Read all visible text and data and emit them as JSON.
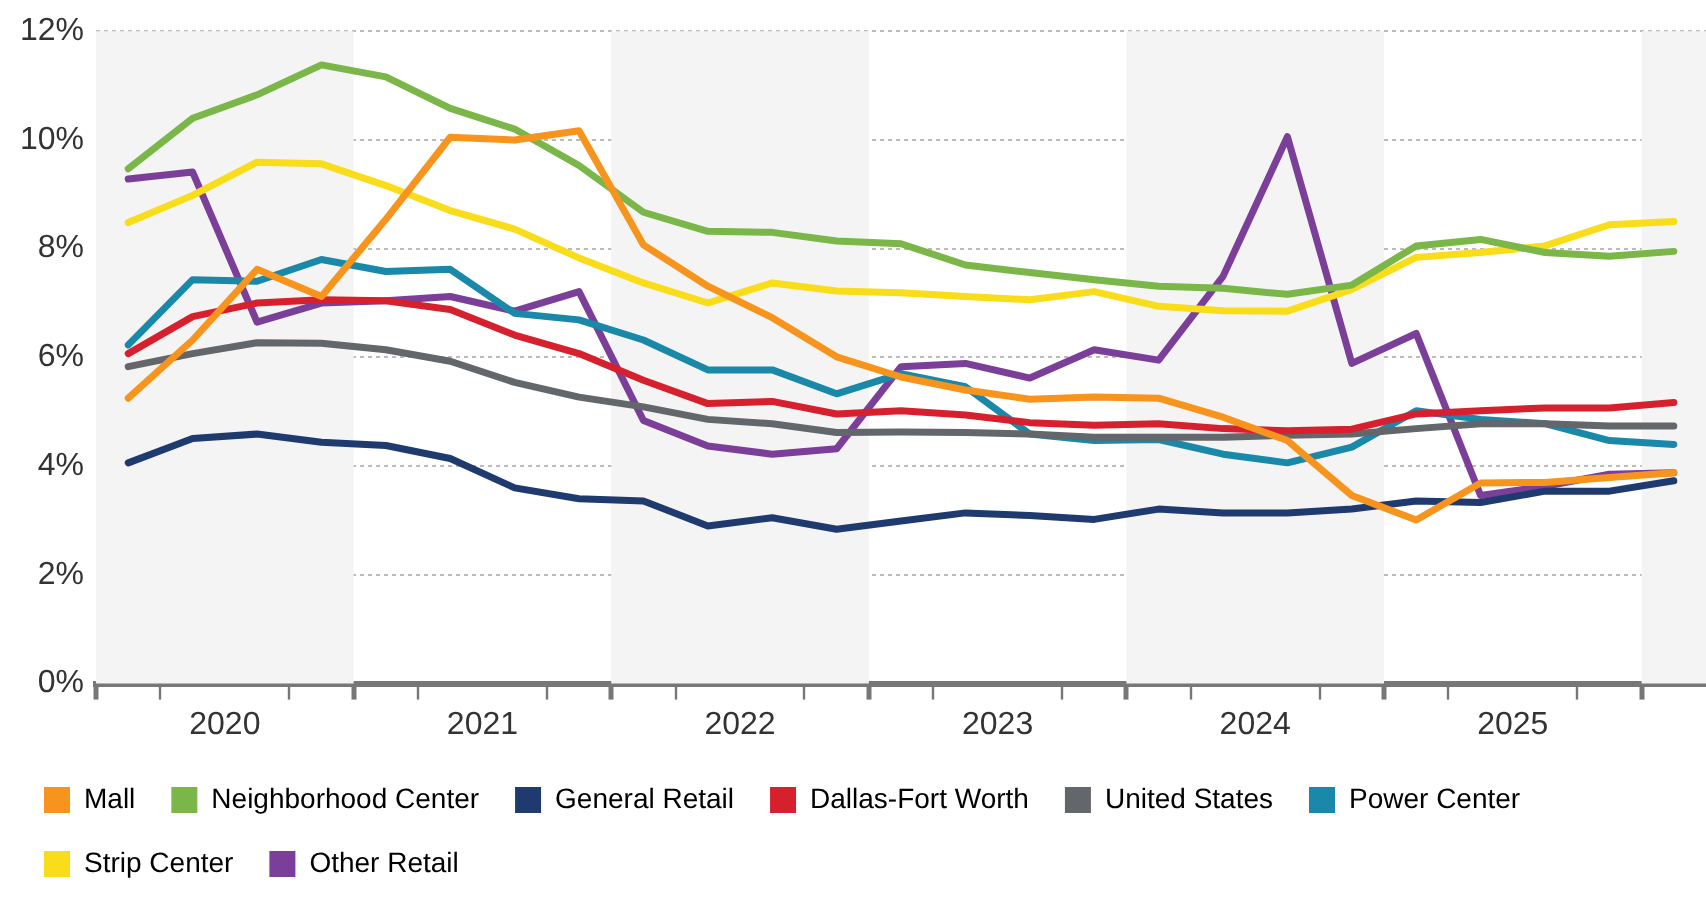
{
  "chart_data": {
    "type": "line",
    "x": [
      2020.125,
      2020.375,
      2020.625,
      2020.875,
      2021.125,
      2021.375,
      2021.625,
      2021.875,
      2022.125,
      2022.375,
      2022.625,
      2022.875,
      2023.125,
      2023.375,
      2023.625,
      2023.875,
      2024.125,
      2024.375,
      2024.625,
      2024.875,
      2025.125,
      2025.375,
      2025.625,
      2025.875,
      2026.125
    ],
    "series": [
      {
        "name": "Mall",
        "color": "#f7941d",
        "values": [
          5.25,
          6.32,
          7.62,
          7.12,
          8.54,
          10.05,
          10.0,
          10.17,
          8.07,
          7.31,
          6.73,
          6.01,
          5.64,
          5.4,
          5.23,
          5.27,
          5.25,
          4.9,
          4.47,
          3.46,
          3.01,
          3.69,
          3.7,
          3.79,
          3.88
        ]
      },
      {
        "name": "Neighborhood Center",
        "color": "#7ab648",
        "values": [
          9.47,
          10.4,
          10.83,
          11.38,
          11.16,
          10.58,
          10.2,
          9.53,
          8.67,
          8.32,
          8.3,
          8.14,
          8.09,
          7.7,
          7.56,
          7.43,
          7.31,
          7.27,
          7.16,
          7.33,
          8.05,
          8.17,
          7.93,
          7.86,
          7.95
        ]
      },
      {
        "name": "General Retail",
        "color": "#1f3a6e",
        "values": [
          4.06,
          4.51,
          4.59,
          4.44,
          4.38,
          4.14,
          3.6,
          3.4,
          3.36,
          2.9,
          3.05,
          2.84,
          2.99,
          3.14,
          3.09,
          3.02,
          3.21,
          3.14,
          3.14,
          3.21,
          3.36,
          3.33,
          3.54,
          3.54,
          3.73
        ]
      },
      {
        "name": "Dallas-Fort Worth",
        "color": "#d7202e",
        "values": [
          6.07,
          6.75,
          7.0,
          7.06,
          7.04,
          6.88,
          6.41,
          6.07,
          5.58,
          5.15,
          5.19,
          4.96,
          5.02,
          4.94,
          4.8,
          4.75,
          4.78,
          4.69,
          4.65,
          4.68,
          4.96,
          5.02,
          5.07,
          5.07,
          5.17
        ]
      },
      {
        "name": "United States",
        "color": "#63666a",
        "values": [
          5.83,
          6.07,
          6.27,
          6.26,
          6.14,
          5.93,
          5.54,
          5.27,
          5.09,
          4.86,
          4.78,
          4.62,
          4.63,
          4.62,
          4.59,
          4.53,
          4.53,
          4.53,
          4.57,
          4.59,
          4.69,
          4.78,
          4.78,
          4.74,
          4.74
        ]
      },
      {
        "name": "Power Center",
        "color": "#1a88a8",
        "values": [
          6.23,
          7.43,
          7.4,
          7.8,
          7.58,
          7.62,
          6.81,
          6.69,
          6.32,
          5.77,
          5.77,
          5.33,
          5.7,
          5.46,
          4.59,
          4.47,
          4.49,
          4.22,
          4.06,
          4.35,
          5.02,
          4.86,
          4.78,
          4.47,
          4.4
        ]
      },
      {
        "name": "Strip Center",
        "color": "#f9dc1a",
        "values": [
          8.48,
          8.98,
          9.59,
          9.56,
          9.16,
          8.7,
          8.36,
          7.83,
          7.37,
          7.0,
          7.37,
          7.22,
          7.19,
          7.12,
          7.06,
          7.21,
          6.94,
          6.86,
          6.85,
          7.25,
          7.84,
          7.93,
          8.05,
          8.44,
          8.5
        ]
      },
      {
        "name": "Other Retail",
        "color": "#7b3f99",
        "values": [
          9.28,
          9.41,
          6.65,
          7.0,
          7.04,
          7.12,
          6.85,
          7.21,
          4.84,
          4.37,
          4.22,
          4.32,
          5.83,
          5.89,
          5.62,
          6.14,
          5.95,
          7.49,
          10.06,
          5.89,
          6.44,
          3.46,
          3.63,
          3.85,
          3.88
        ]
      }
    ],
    "xlim": [
      2020,
      2026.25
    ],
    "xticks": [
      {
        "value": 2020,
        "label": null
      },
      {
        "value": 2020.25,
        "label": null
      },
      {
        "value": 2020.5,
        "label": "2020"
      },
      {
        "value": 2020.75,
        "label": null
      },
      {
        "value": 2021,
        "label": null
      },
      {
        "value": 2021.25,
        "label": null
      },
      {
        "value": 2021.5,
        "label": "2021"
      },
      {
        "value": 2021.75,
        "label": null
      },
      {
        "value": 2022,
        "label": null
      },
      {
        "value": 2022.25,
        "label": null
      },
      {
        "value": 2022.5,
        "label": "2022"
      },
      {
        "value": 2022.75,
        "label": null
      },
      {
        "value": 2023,
        "label": null
      },
      {
        "value": 2023.25,
        "label": null
      },
      {
        "value": 2023.5,
        "label": "2023"
      },
      {
        "value": 2023.75,
        "label": null
      },
      {
        "value": 2024,
        "label": null
      },
      {
        "value": 2024.25,
        "label": null
      },
      {
        "value": 2024.5,
        "label": "2024"
      },
      {
        "value": 2024.75,
        "label": null
      },
      {
        "value": 2025,
        "label": null
      },
      {
        "value": 2025.25,
        "label": null
      },
      {
        "value": 2025.5,
        "label": "2025"
      },
      {
        "value": 2025.75,
        "label": null
      },
      {
        "value": 2026,
        "label": null
      }
    ],
    "ylim": [
      0,
      12
    ],
    "yticks": [
      {
        "value": 0,
        "label": "0%"
      },
      {
        "value": 2,
        "label": "2%"
      },
      {
        "value": 4,
        "label": "4%"
      },
      {
        "value": 6,
        "label": "6%"
      },
      {
        "value": 8,
        "label": "8%"
      },
      {
        "value": 10,
        "label": "10%"
      },
      {
        "value": 12,
        "label": "12%"
      }
    ],
    "bands": [
      {
        "axis": "x",
        "from": 2020,
        "to": 2021,
        "color": "#f4f4f4"
      },
      {
        "axis": "x",
        "from": 2022,
        "to": 2023,
        "color": "#f4f4f4"
      },
      {
        "axis": "x",
        "from": 2024,
        "to": 2025,
        "color": "#f4f4f4"
      },
      {
        "axis": "x",
        "from": 2026,
        "to": 2026.25,
        "color": "#f4f4f4"
      }
    ],
    "grid": "y",
    "legend": "bottom",
    "marker": "none",
    "line_style": "solid"
  }
}
